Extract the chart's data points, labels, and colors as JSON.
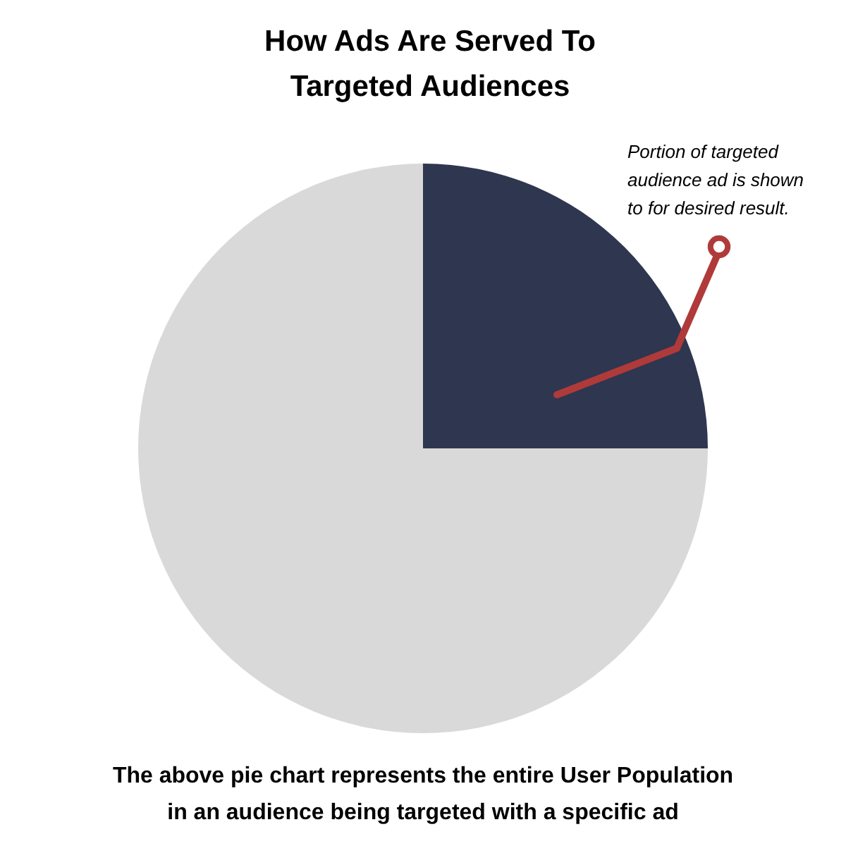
{
  "chart_data": {
    "type": "pie",
    "title": "How Ads Are Served To Targeted Audiences",
    "categories": [
      null,
      null
    ],
    "values": [
      25,
      75
    ],
    "colors": [
      "#2e3650",
      "#d9d9d9"
    ],
    "annotations": [
      "Portion of targeted audience ad is shown to for desired result.",
      "The above pie chart represents the entire User Population in an audience being targeted with a specific ad"
    ]
  }
}
